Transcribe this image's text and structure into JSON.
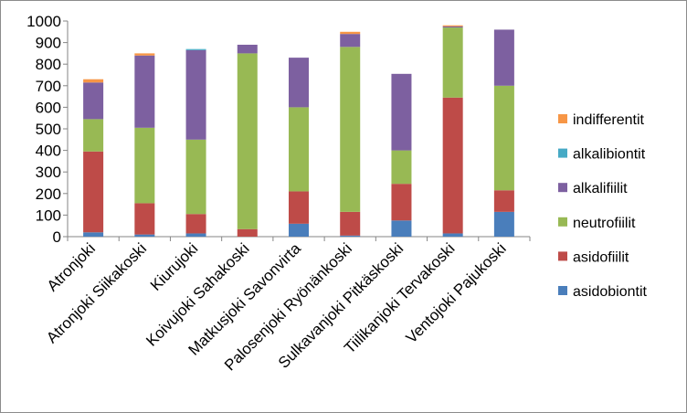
{
  "chart_data": {
    "type": "bar",
    "stacked": true,
    "ylim": [
      0,
      1000
    ],
    "yticks": [
      0,
      100,
      200,
      300,
      400,
      500,
      600,
      700,
      800,
      900,
      1000
    ],
    "grid": false,
    "legend_position": "right",
    "categories": [
      "Atronjoki",
      "Atronjoki Siikakoski",
      "Kiurujoki",
      "Koivujoki Sahakoski",
      "Matkusjoki Savonvirta",
      "Palosenjoki Ryönänkoski",
      "Sulkavanjoki Pitkäskoski",
      "Tiilikanjoki Tervakoski",
      "Ventojoki Pajukoski"
    ],
    "series": [
      {
        "name": "asidobiontit",
        "color": "#4a7ebb",
        "values": [
          20,
          10,
          15,
          0,
          60,
          5,
          75,
          15,
          115
        ]
      },
      {
        "name": "asidofiilit",
        "color": "#be4b48",
        "values": [
          375,
          145,
          90,
          35,
          150,
          110,
          170,
          630,
          100
        ]
      },
      {
        "name": "neutrofiilit",
        "color": "#98b954",
        "values": [
          150,
          350,
          345,
          815,
          390,
          765,
          155,
          325,
          485
        ]
      },
      {
        "name": "alkalifiilit",
        "color": "#7d60a0",
        "values": [
          170,
          335,
          415,
          40,
          230,
          60,
          355,
          5,
          260
        ]
      },
      {
        "name": "alkalibiontit",
        "color": "#46aac5",
        "values": [
          0,
          0,
          5,
          0,
          0,
          0,
          0,
          0,
          0
        ]
      },
      {
        "name": "indifferentit",
        "color": "#f79646",
        "values": [
          15,
          10,
          0,
          0,
          0,
          10,
          0,
          5,
          0
        ]
      }
    ]
  }
}
